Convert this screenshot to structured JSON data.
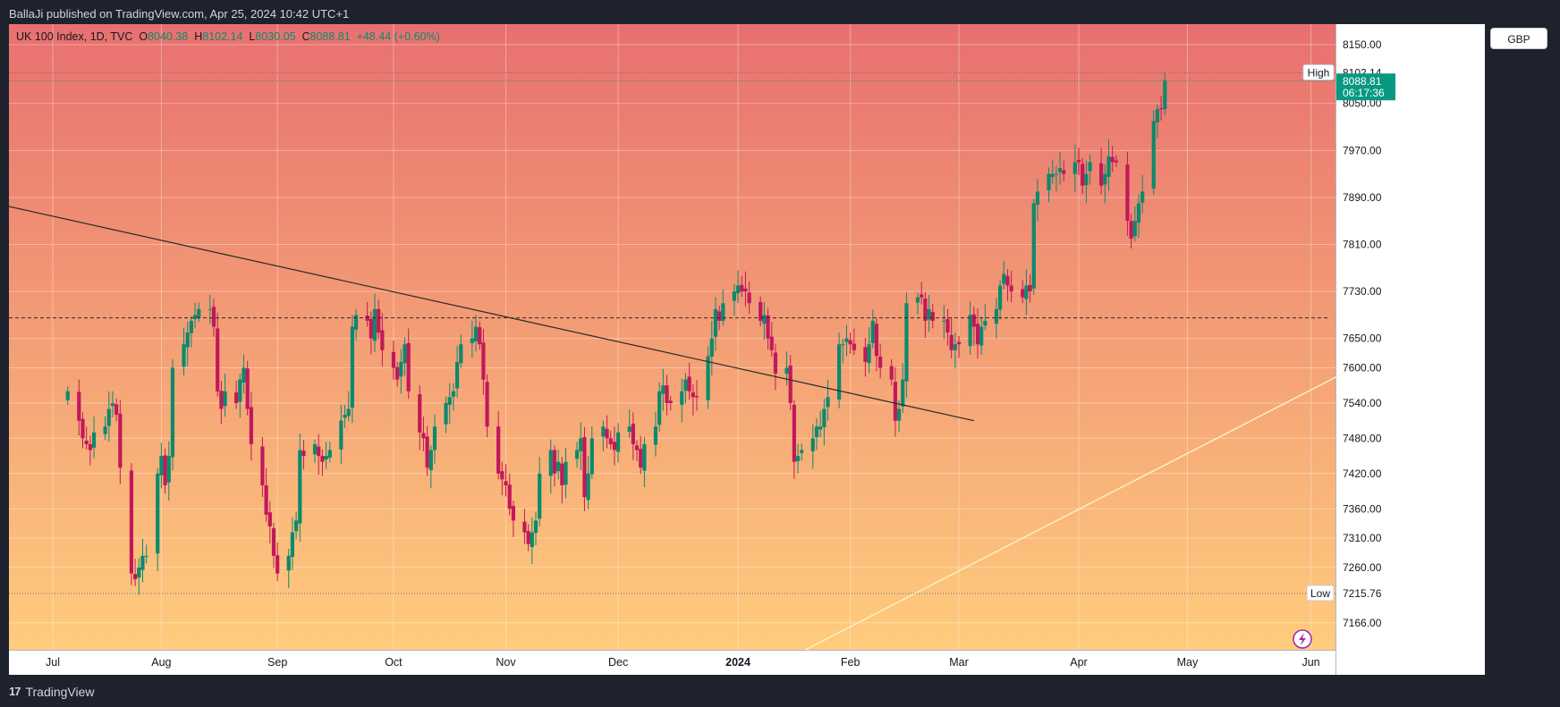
{
  "header": {
    "published": "BallaJi published on TradingView.com, Apr 25, 2024 10:42 UTC+1"
  },
  "legend": {
    "symbol": "UK 100 Index, 1D, TVC",
    "o_label": "O",
    "o": "8040.38",
    "h_label": "H",
    "h": "8102.14",
    "l_label": "L",
    "l": "8030.05",
    "c_label": "C",
    "c": "8088.81",
    "change": "+48.44 (+0.60%)"
  },
  "currency_button": "GBP",
  "footer": {
    "brand": "TradingView",
    "logo": "tradingview-logo-icon"
  },
  "colors": {
    "up": "#0b8a6d",
    "down": "#c2185b",
    "bg_top": "#e8706f",
    "bg_bottom": "#ffcc7d",
    "trendline": "#2a2a2a",
    "support_line": "#fff3c4",
    "last_price_bg": "#089981"
  },
  "chart_data": {
    "type": "candlestick",
    "title": "UK 100 Index, 1D, TVC",
    "ylim": [
      7120,
      8185
    ],
    "y_ticks": [
      "8150.00",
      "8050.00",
      "7970.00",
      "7890.00",
      "7810.00",
      "7730.00",
      "7650.00",
      "7600.00",
      "7540.00",
      "7480.00",
      "7420.00",
      "7360.00",
      "7310.00",
      "7260.00",
      "7166.00"
    ],
    "x_labels": [
      {
        "label": "Jul",
        "date": "2023-07-03",
        "bold": false
      },
      {
        "label": "Aug",
        "date": "2023-08-01",
        "bold": false
      },
      {
        "label": "Sep",
        "date": "2023-09-01",
        "bold": false
      },
      {
        "label": "Oct",
        "date": "2023-10-02",
        "bold": false
      },
      {
        "label": "Nov",
        "date": "2023-11-01",
        "bold": false
      },
      {
        "label": "Dec",
        "date": "2023-12-01",
        "bold": false
      },
      {
        "label": "2024",
        "date": "2024-01-02",
        "bold": true
      },
      {
        "label": "Feb",
        "date": "2024-02-01",
        "bold": false
      },
      {
        "label": "Mar",
        "date": "2024-03-01",
        "bold": false
      },
      {
        "label": "Apr",
        "date": "2024-04-02",
        "bold": false
      },
      {
        "label": "May",
        "date": "2024-05-01",
        "bold": false
      },
      {
        "label": "Jun",
        "date": "2024-06-03",
        "bold": false
      }
    ],
    "price_labels": [
      {
        "name": "High",
        "value": "8102.14"
      },
      {
        "name": "Low",
        "value": "7215.76"
      }
    ],
    "last_price": {
      "value": "8088.81",
      "countdown": "06:17:36"
    },
    "horizontal_line": {
      "value": 7685,
      "style": "dashed"
    },
    "trendline": {
      "from": {
        "date": "2023-06-21",
        "price": 7875
      },
      "to": {
        "date": "2024-03-05",
        "price": 7510
      }
    },
    "support_line": {
      "from": {
        "date": "2024-01-20",
        "price": 7120
      },
      "to": {
        "date": "2024-06-13",
        "price": 7595
      }
    },
    "closes": [
      7560,
      7510,
      7480,
      7470,
      7460,
      7490,
      7500,
      7530,
      7540,
      7520,
      7430,
      7250,
      7240,
      7260,
      7280,
      7280,
      7420,
      7450,
      7400,
      7450,
      7600,
      7640,
      7660,
      7680,
      7690,
      7700,
      7700,
      7670,
      7560,
      7530,
      7560,
      7540,
      7580,
      7600,
      7530,
      7470,
      7400,
      7350,
      7330,
      7280,
      7250,
      7280,
      7320,
      7340,
      7460,
      7450,
      7470,
      7450,
      7440,
      7450,
      7460,
      7510,
      7520,
      7530,
      7670,
      7690,
      7680,
      7650,
      7700,
      7660,
      7630,
      7600,
      7580,
      7610,
      7640,
      7560,
      7490,
      7480,
      7430,
      7460,
      7500,
      7540,
      7550,
      7560,
      7610,
      7640,
      7650,
      7670,
      7640,
      7580,
      7500,
      7420,
      7410,
      7400,
      7360,
      7340,
      7320,
      7300,
      7320,
      7340,
      7420,
      7460,
      7420,
      7440,
      7400,
      7440,
      7460,
      7480,
      7380,
      7420,
      7480,
      7500,
      7480,
      7470,
      7460,
      7490,
      7500,
      7470,
      7460,
      7430,
      7470,
      7500,
      7560,
      7570,
      7540,
      7540,
      7560,
      7580,
      7560,
      7550,
      7550,
      7620,
      7650,
      7700,
      7680,
      7710,
      7730,
      7740,
      7730,
      7730,
      7710,
      7680,
      7690,
      7650,
      7630,
      7590,
      7600,
      7540,
      7440,
      7450,
      7460,
      7480,
      7500,
      7500,
      7530,
      7550,
      7640,
      7640,
      7650,
      7640,
      7630,
      7610,
      7640,
      7680,
      7620,
      7600,
      7580,
      7510,
      7530,
      7580,
      7710,
      7720,
      7720,
      7680,
      7700,
      7680,
      7680,
      7660,
      7630,
      7640,
      7640,
      7690,
      7670,
      7640,
      7670,
      7680,
      7700,
      7740,
      7760,
      7740,
      7730,
      7720,
      7740,
      7730,
      7880,
      7900,
      7930,
      7930,
      7930,
      7940,
      7930,
      7950,
      7950,
      7910,
      7930,
      7950,
      7910,
      7930,
      7960,
      7950,
      7950,
      7850,
      7820,
      7850,
      7880,
      7900,
      8020,
      8040,
      8040,
      8089
    ],
    "data_note": "Approximate daily closes read off the chart, ~208 trading days Jun 2023 – Apr 25 2024"
  }
}
